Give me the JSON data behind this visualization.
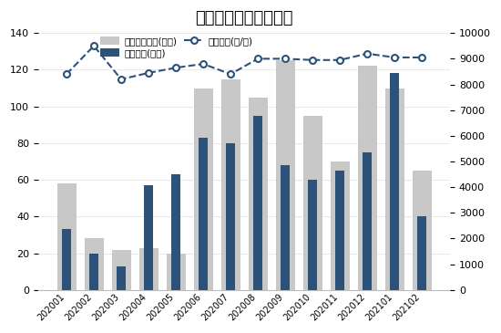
{
  "title": "兰州商品住宅量价走势",
  "categories": [
    "202001",
    "202002",
    "202003",
    "202004",
    "202005",
    "202006",
    "202007",
    "202008",
    "202009",
    "202010",
    "202011",
    "202012",
    "202101",
    "202102"
  ],
  "approved_area": [
    58,
    28,
    22,
    23,
    20,
    110,
    115,
    105,
    125,
    95,
    70,
    122,
    110,
    65
  ],
  "sales_area": [
    33,
    20,
    13,
    57,
    63,
    83,
    80,
    95,
    68,
    60,
    65,
    75,
    118,
    40
  ],
  "sales_price": [
    8400,
    9500,
    8200,
    8450,
    8650,
    8800,
    8400,
    9000,
    9000,
    8950,
    8950,
    9200,
    9050,
    9050
  ],
  "approved_color": "#c8c8c8",
  "sales_color": "#2d527a",
  "price_color": "#2d527a",
  "left_ylim": [
    0,
    140
  ],
  "left_yticks": [
    0,
    20,
    40,
    60,
    80,
    100,
    120,
    140
  ],
  "right_ylim": [
    0,
    10000
  ],
  "right_yticks": [
    0,
    1000,
    2000,
    3000,
    4000,
    5000,
    6000,
    7000,
    8000,
    9000,
    10000
  ],
  "legend_approved": "批准上市面积(万㎡)",
  "legend_sales": "销售面积(万㎡)",
  "legend_price": "销售价格(元/㎡)",
  "background_color": "#ffffff",
  "title_fontsize": 13
}
